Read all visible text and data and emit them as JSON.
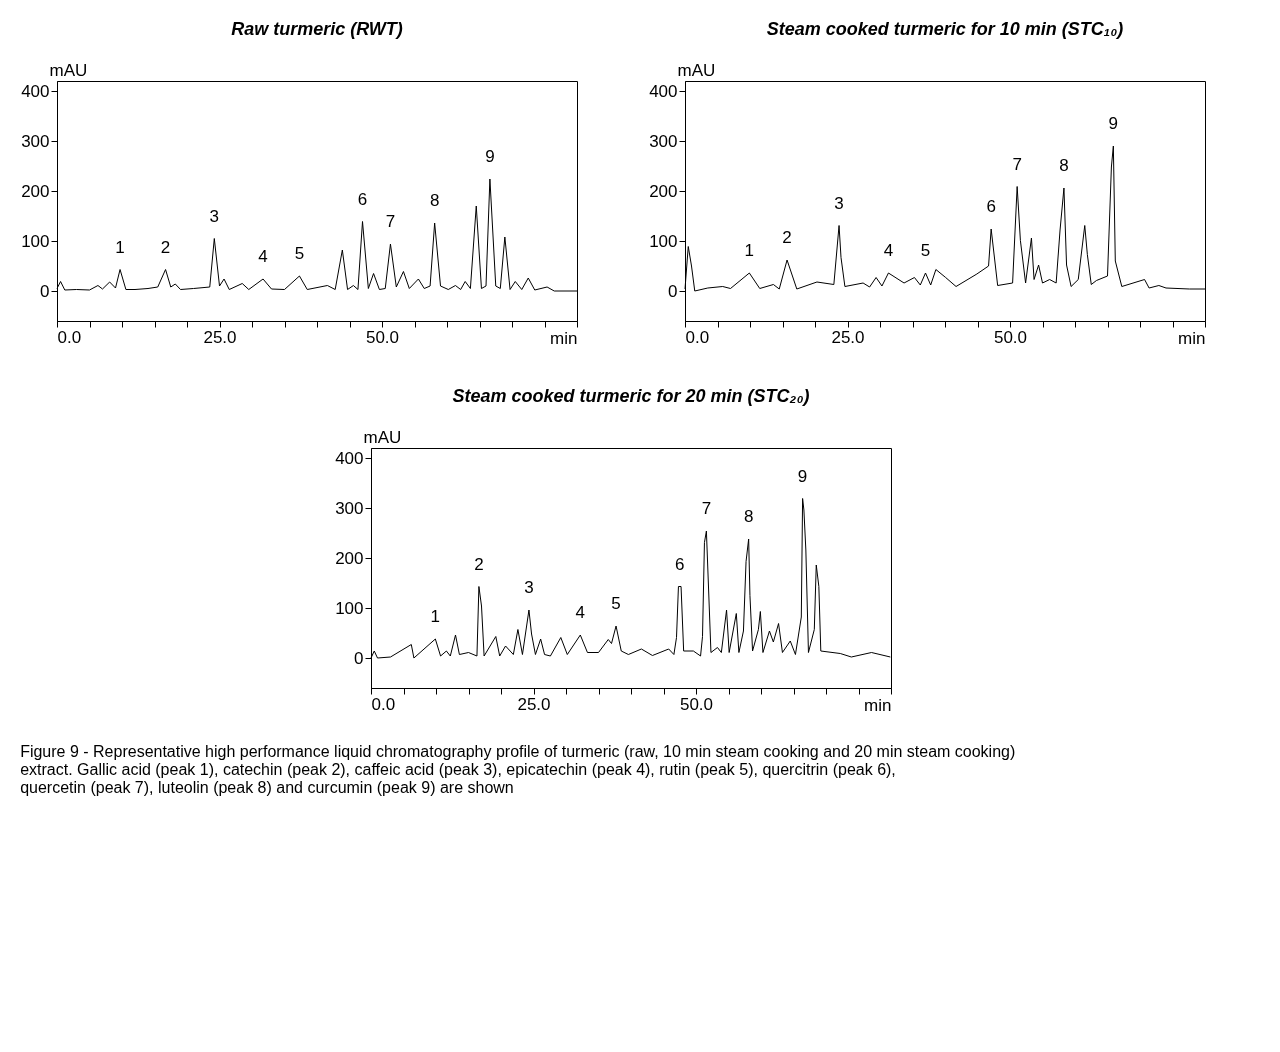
{
  "chart_data": [
    {
      "type": "line",
      "title": "Raw turmeric (RWT)",
      "xlabel": "min",
      "ylabel": "mAU",
      "xlim": [
        0,
        80
      ],
      "ylim": [
        -60,
        420
      ],
      "xticks": [
        {
          "value": 0,
          "label": "0.0"
        },
        {
          "value": 5,
          "label": null
        },
        {
          "value": 10,
          "label": null
        },
        {
          "value": 15,
          "label": null
        },
        {
          "value": 20,
          "label": null
        },
        {
          "value": 25,
          "label": "25.0"
        },
        {
          "value": 30,
          "label": null
        },
        {
          "value": 35,
          "label": null
        },
        {
          "value": 40,
          "label": null
        },
        {
          "value": 45,
          "label": null
        },
        {
          "value": 50,
          "label": "50.0"
        },
        {
          "value": 55,
          "label": null
        },
        {
          "value": 60,
          "label": null
        },
        {
          "value": 65,
          "label": null
        },
        {
          "value": 70,
          "label": null
        },
        {
          "value": 75,
          "label": null
        },
        {
          "value": 80,
          "label": null
        }
      ],
      "yticks": [
        0,
        100,
        200,
        300,
        400
      ],
      "grid": false,
      "series": [
        {
          "color": "#000000",
          "x": [
            0,
            0.55,
            1.2,
            3,
            5,
            6.3,
            7,
            8.1,
            9,
            9.7,
            10.6,
            12,
            14,
            15.5,
            16.7,
            17.5,
            18.2,
            19,
            21,
            23.5,
            24.2,
            25,
            25.7,
            26.5,
            28.5,
            29.5,
            31.7,
            33,
            35,
            37.3,
            38.5,
            41.6,
            42.8,
            43.9,
            44.7,
            45.6,
            46.3,
            47.0,
            47.9,
            48.7,
            49.6,
            50.5,
            51.3,
            52.2,
            53.3,
            54.2,
            55.6,
            56.5,
            57.4,
            58.1,
            59,
            60.2,
            61.3,
            62.1,
            62.8,
            63.6,
            64.5,
            65.3,
            66.0,
            66.6,
            67.5,
            68.2,
            68.9,
            69.7,
            70.5,
            71.5,
            72.5,
            73.5,
            75.4,
            76.5,
            80
          ],
          "values": [
            5,
            19,
            2,
            3,
            2,
            11,
            4,
            18,
            6,
            43,
            3,
            3,
            5,
            8,
            43,
            8,
            14,
            3,
            5,
            8,
            105,
            10,
            24,
            3,
            15,
            3,
            24,
            4,
            3,
            30,
            3,
            11,
            3,
            82,
            3,
            11,
            3,
            139,
            5,
            35,
            3,
            5,
            94,
            8,
            39,
            5,
            24,
            5,
            10,
            136,
            10,
            3,
            11,
            3,
            19,
            5,
            170,
            5,
            10,
            224,
            10,
            5,
            108,
            3,
            19,
            3,
            26,
            2,
            8,
            0,
            0
          ]
        }
      ],
      "annotations": [
        {
          "text": "1",
          "x": 9.7,
          "y": 43
        },
        {
          "text": "2",
          "x": 16.7,
          "y": 43
        },
        {
          "text": "3",
          "x": 24.2,
          "y": 105
        },
        {
          "text": "4",
          "x": 31.7,
          "y": 24
        },
        {
          "text": "5",
          "x": 37.3,
          "y": 30
        },
        {
          "text": "6",
          "x": 47.0,
          "y": 139
        },
        {
          "text": "7",
          "x": 51.3,
          "y": 94
        },
        {
          "text": "8",
          "x": 58.1,
          "y": 136
        },
        {
          "text": "9",
          "x": 66.6,
          "y": 224
        }
      ]
    },
    {
      "type": "line",
      "title": "Steam cooked turmeric for 10 min (STC₁₀)",
      "xlabel": "min",
      "ylabel": "mAU",
      "xlim": [
        0,
        80
      ],
      "ylim": [
        -60,
        420
      ],
      "xticks": [
        {
          "value": 0,
          "label": "0.0"
        },
        {
          "value": 5,
          "label": null
        },
        {
          "value": 10,
          "label": null
        },
        {
          "value": 15,
          "label": null
        },
        {
          "value": 20,
          "label": null
        },
        {
          "value": 25,
          "label": "25.0"
        },
        {
          "value": 30,
          "label": null
        },
        {
          "value": 35,
          "label": null
        },
        {
          "value": 40,
          "label": null
        },
        {
          "value": 45,
          "label": null
        },
        {
          "value": 50,
          "label": "50.0"
        },
        {
          "value": 55,
          "label": null
        },
        {
          "value": 60,
          "label": null
        },
        {
          "value": 65,
          "label": null
        },
        {
          "value": 70,
          "label": null
        },
        {
          "value": 75,
          "label": null
        },
        {
          "value": 80,
          "label": null
        }
      ],
      "yticks": [
        0,
        100,
        200,
        300,
        400
      ],
      "grid": false,
      "series": [
        {
          "color": "#000000",
          "x": [
            0,
            0.5,
            1.0,
            1.5,
            3.5,
            5.8,
            7,
            9.9,
            11.5,
            13.6,
            14.5,
            15.7,
            17.2,
            20.3,
            22.9,
            23.7,
            24.0,
            24.6,
            27.4,
            28.4,
            29.4,
            30.3,
            31.3,
            33.7,
            35.3,
            36.2,
            37.0,
            37.8,
            38.6,
            40.1,
            41.7,
            44.9,
            46.7,
            47.1,
            48.1,
            50.4,
            51.1,
            51.6,
            52.4,
            53.3,
            53.7,
            54.4,
            55.0,
            56.1,
            57.1,
            57.7,
            58.3,
            58.7,
            59.4,
            60.5,
            61.5,
            61.9,
            62.5,
            63.3,
            65.0,
            65.6,
            65.9,
            66.2,
            67.2,
            70.7,
            71.4,
            72.9,
            74.0,
            77.6,
            80
          ],
          "values": [
            4,
            89,
            50,
            0,
            6,
            9,
            5,
            36,
            5,
            13,
            4,
            62,
            4,
            18,
            13,
            131,
            67,
            9,
            16,
            8,
            27,
            10,
            36,
            16,
            27,
            12,
            36,
            12,
            43,
            27,
            9,
            34,
            50,
            124,
            11,
            16,
            209,
            101,
            16,
            106,
            23,
            52,
            16,
            23,
            16,
            122,
            206,
            52,
            9,
            23,
            131,
            73,
            13,
            21,
            30,
            248,
            290,
            60,
            9,
            23,
            6,
            11,
            6,
            4,
            4
          ]
        }
      ],
      "annotations": [
        {
          "text": "1",
          "x": 9.9,
          "y": 36
        },
        {
          "text": "2",
          "x": 15.7,
          "y": 62
        },
        {
          "text": "3",
          "x": 23.7,
          "y": 131
        },
        {
          "text": "4",
          "x": 31.3,
          "y": 36
        },
        {
          "text": "5",
          "x": 37.0,
          "y": 36
        },
        {
          "text": "6",
          "x": 47.1,
          "y": 124
        },
        {
          "text": "7",
          "x": 51.1,
          "y": 209
        },
        {
          "text": "8",
          "x": 58.3,
          "y": 206
        },
        {
          "text": "9",
          "x": 65.9,
          "y": 290
        }
      ]
    },
    {
      "type": "line",
      "title": "Steam cooked turmeric for 20 min (STC₂₀)",
      "xlabel": "min",
      "ylabel": "mAU",
      "xlim": [
        0,
        80
      ],
      "ylim": [
        -60,
        420
      ],
      "xticks": [
        {
          "value": 0,
          "label": "0.0"
        },
        {
          "value": 5,
          "label": null
        },
        {
          "value": 10,
          "label": null
        },
        {
          "value": 15,
          "label": null
        },
        {
          "value": 20,
          "label": null
        },
        {
          "value": 25,
          "label": "25.0"
        },
        {
          "value": 30,
          "label": null
        },
        {
          "value": 35,
          "label": null
        },
        {
          "value": 40,
          "label": null
        },
        {
          "value": 45,
          "label": null
        },
        {
          "value": 50,
          "label": "50.0"
        },
        {
          "value": 55,
          "label": null
        },
        {
          "value": 60,
          "label": null
        },
        {
          "value": 65,
          "label": null
        },
        {
          "value": 70,
          "label": null
        },
        {
          "value": 75,
          "label": null
        },
        {
          "value": 80,
          "label": null
        }
      ],
      "yticks": [
        0,
        100,
        200,
        300,
        400
      ],
      "grid": false,
      "series": [
        {
          "color": "#000000",
          "x": [
            0,
            0.5,
            1.0,
            3.0,
            6.2,
            6.6,
            9.9,
            10.7,
            11.6,
            12.2,
            13.0,
            13.6,
            15.0,
            16.3,
            16.6,
            17.0,
            17.4,
            19.2,
            19.8,
            20.7,
            21.9,
            22.6,
            23.3,
            24.3,
            24.7,
            25.3,
            26.1,
            26.7,
            27.6,
            29.2,
            30.2,
            32.2,
            33.3,
            35.0,
            36.5,
            37.0,
            37.7,
            38.5,
            39.6,
            41.6,
            43.3,
            45.8,
            46.6,
            47.0,
            47.3,
            47.7,
            48.1,
            49.6,
            50.7,
            51.0,
            51.3,
            51.6,
            51.9,
            52.3,
            53.3,
            53.9,
            54.7,
            55.1,
            56.2,
            56.6,
            57.3,
            57.7,
            58.1,
            58.3,
            58.7,
            59.6,
            59.9,
            60.3,
            61.3,
            61.9,
            62.7,
            63.3,
            64.5,
            65.3,
            66.2,
            66.4,
            66.6,
            66.9,
            67.3,
            68.2,
            68.5,
            68.9,
            69.2,
            72.2,
            73.9,
            77.0,
            79.9
          ],
          "values": [
            0,
            14,
            0,
            2,
            27,
            0,
            38,
            4,
            14,
            4,
            46,
            7,
            11,
            4,
            143,
            104,
            4,
            43,
            4,
            24,
            7,
            57,
            7,
            96,
            48,
            7,
            38,
            7,
            4,
            41,
            7,
            46,
            11,
            11,
            37,
            29,
            64,
            14,
            7,
            18,
            5,
            18,
            7,
            41,
            143,
            143,
            14,
            14,
            4,
            43,
            231,
            254,
            150,
            11,
            21,
            11,
            96,
            11,
            89,
            11,
            54,
            193,
            238,
            125,
            14,
            57,
            93,
            11,
            54,
            32,
            69,
            11,
            34,
            7,
            82,
            319,
            296,
            216,
            11,
            57,
            186,
            143,
            14,
            9,
            2,
            11,
            2
          ]
        }
      ],
      "annotations": [
        {
          "text": "1",
          "x": 9.9,
          "y": 38
        },
        {
          "text": "2",
          "x": 16.6,
          "y": 143
        },
        {
          "text": "3",
          "x": 24.3,
          "y": 96
        },
        {
          "text": "4",
          "x": 32.2,
          "y": 46
        },
        {
          "text": "5",
          "x": 37.7,
          "y": 64
        },
        {
          "text": "6",
          "x": 47.5,
          "y": 143
        },
        {
          "text": "7",
          "x": 51.6,
          "y": 254
        },
        {
          "text": "8",
          "x": 58.1,
          "y": 238
        },
        {
          "text": "9",
          "x": 66.4,
          "y": 319
        },
        "Figure 9 - Representative high performance liquid chromatography profile of turmeric (raw, 10 min steam cooking and 20 min steam cooking) extract. Gallic acid (peak 1), catechin (peak 2), caffeic acid (peak 3), epicatechin (peak 4), rutin (peak 5), quercitrin (peak 6), quercetin (peak 7), luteolin (peak 8) and curcumin (peak 9) are shown"
      ]
    }
  ]
}
